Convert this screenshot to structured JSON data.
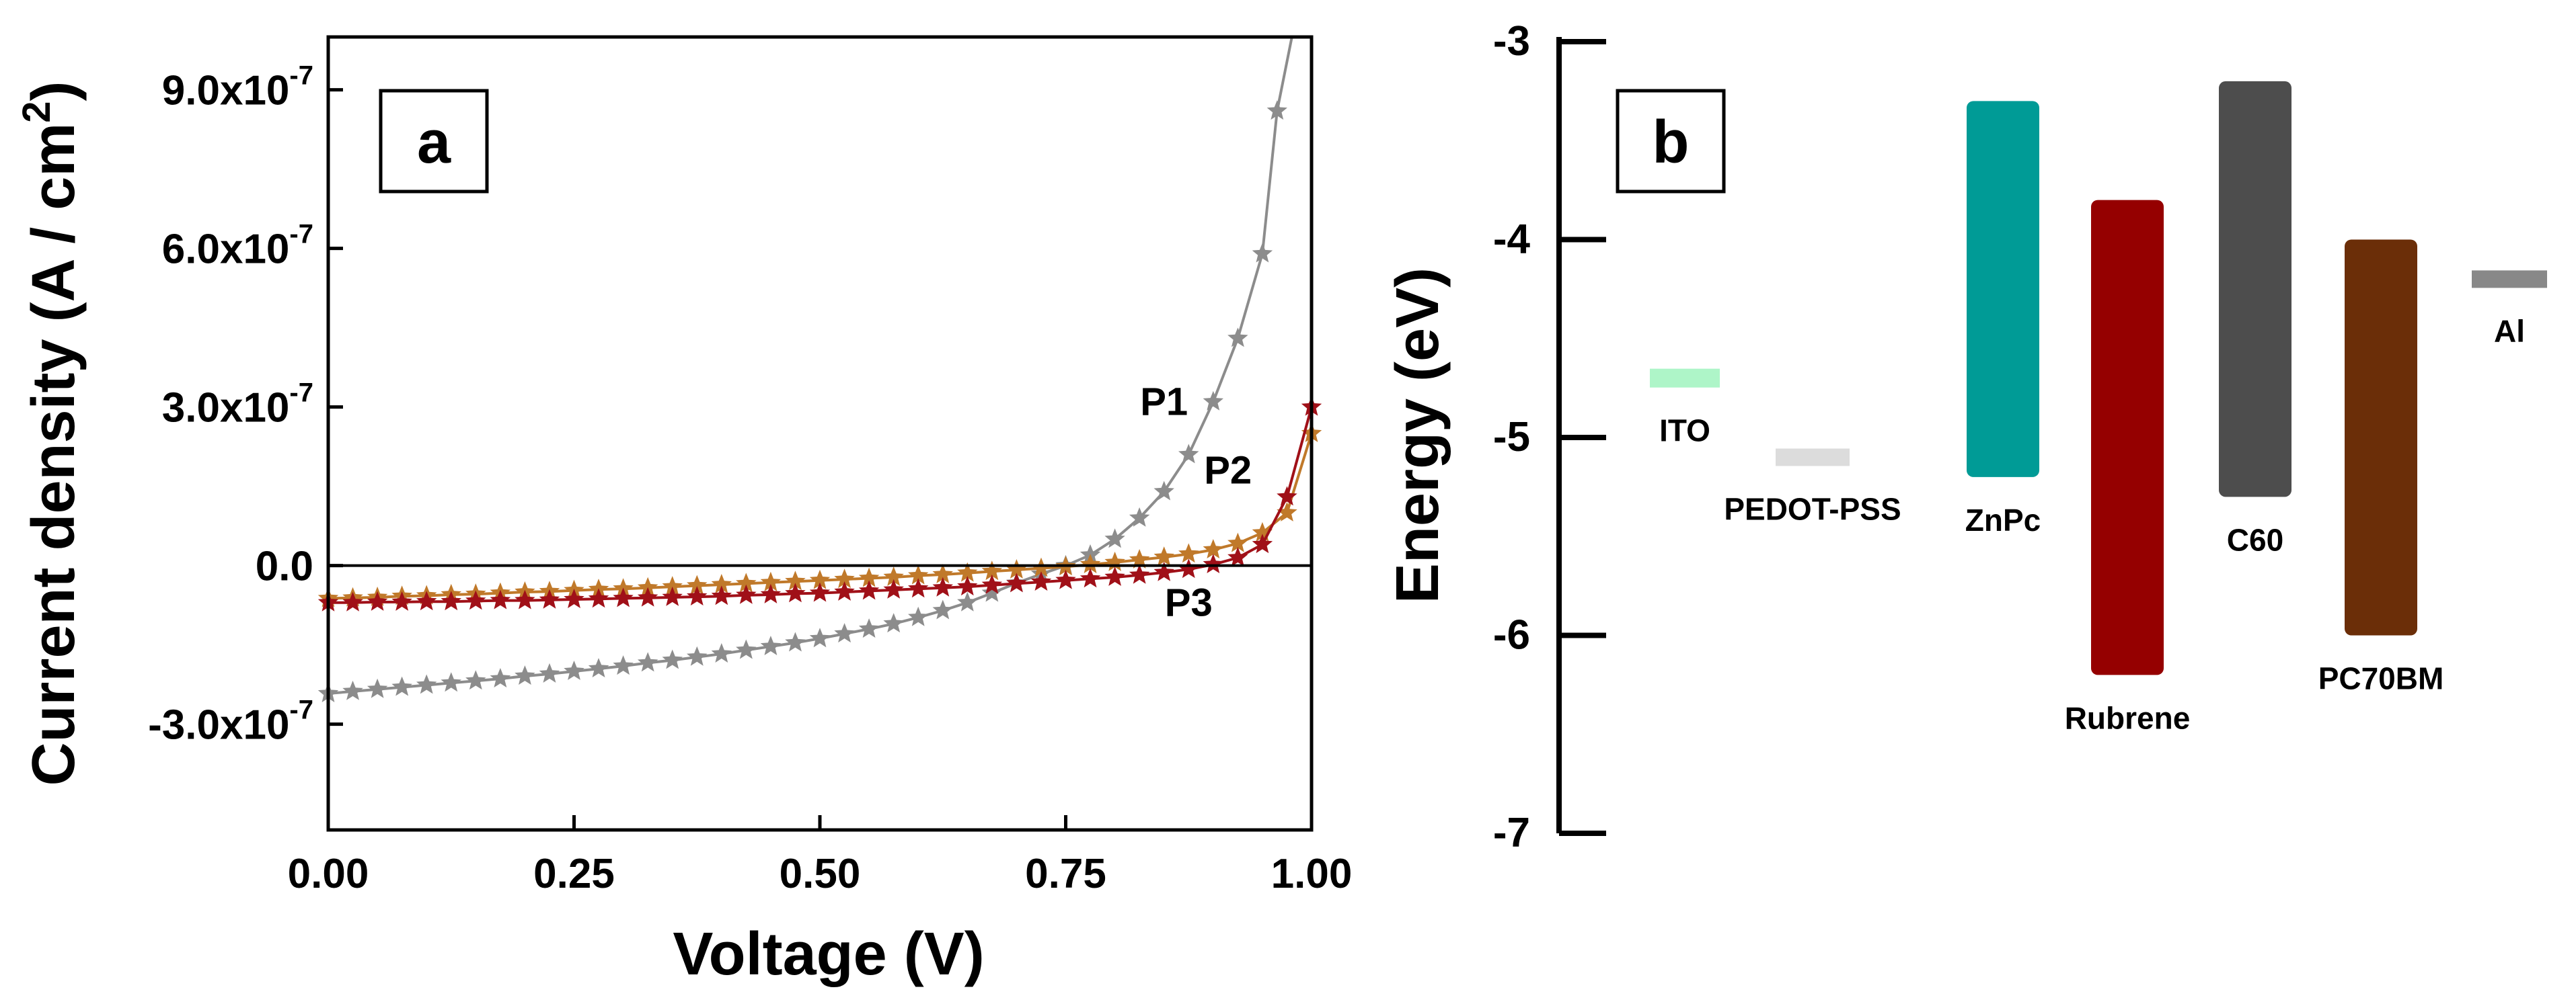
{
  "chart_data": [
    {
      "panel_label": "a",
      "type": "scatter",
      "xlabel": "Voltage  (V)",
      "ylabel_text": "Current  density  (A / cm",
      "ylabel_sup": "2",
      "ylabel_close": ")",
      "xlim": [
        0,
        1
      ],
      "ylim": [
        -5e-07,
        1e-06
      ],
      "x_ticks": [
        {
          "value": 0.0,
          "label": "0.00"
        },
        {
          "value": 0.25,
          "label": "0.25"
        },
        {
          "value": 0.5,
          "label": "0.50"
        },
        {
          "value": 0.75,
          "label": "0.75"
        },
        {
          "value": 1.0,
          "label": "1.00"
        }
      ],
      "y_ticks": [
        {
          "value": -3e-07,
          "mant": "-3.0x10",
          "exp": "-7"
        },
        {
          "value": 0,
          "mant": "0.0",
          "exp": ""
        },
        {
          "value": 3e-07,
          "mant": "3.0x10",
          "exp": "-7"
        },
        {
          "value": 6e-07,
          "mant": "6.0x10",
          "exp": "-7"
        },
        {
          "value": 9e-07,
          "mant": "9.0x10",
          "exp": "-7"
        }
      ],
      "zero_line": 0,
      "marker": "star",
      "series": [
        {
          "name": "P1",
          "color": "#8c8c8c",
          "label_at": [
            0.85,
            2.85e-07
          ],
          "x": [
            0.0,
            0.025,
            0.05,
            0.075,
            0.1,
            0.125,
            0.15,
            0.175,
            0.2,
            0.225,
            0.25,
            0.275,
            0.3,
            0.325,
            0.35,
            0.375,
            0.4,
            0.425,
            0.45,
            0.475,
            0.5,
            0.525,
            0.55,
            0.575,
            0.6,
            0.625,
            0.65,
            0.675,
            0.7,
            0.725,
            0.75,
            0.775,
            0.8,
            0.825,
            0.85,
            0.875,
            0.9,
            0.925,
            0.95,
            0.965
          ],
          "y": [
            -2.42e-07,
            -2.38e-07,
            -2.34e-07,
            -2.3e-07,
            -2.26e-07,
            -2.22e-07,
            -2.18e-07,
            -2.14e-07,
            -2.09e-07,
            -2.05e-07,
            -2e-07,
            -1.95e-07,
            -1.9e-07,
            -1.84e-07,
            -1.79e-07,
            -1.73e-07,
            -1.67e-07,
            -1.6e-07,
            -1.53e-07,
            -1.46e-07,
            -1.38e-07,
            -1.29e-07,
            -1.2e-07,
            -1.1e-07,
            -9.8e-08,
            -8.5e-08,
            -7e-08,
            -5.2e-08,
            -3.3e-08,
            -1.6e-08,
            0.0,
            2e-08,
            5e-08,
            9e-08,
            1.4e-07,
            2.1e-07,
            3.1e-07,
            4.3e-07,
            5.9e-07,
            8.6e-07
          ],
          "tail": [
            [
              0.965,
              8.6e-07
            ],
            [
              0.98,
              1e-06
            ]
          ]
        },
        {
          "name": "P2",
          "color": "#c0792a",
          "label_at": [
            0.915,
            1.55e-07
          ],
          "x": [
            0.0,
            0.025,
            0.05,
            0.075,
            0.1,
            0.125,
            0.15,
            0.175,
            0.2,
            0.225,
            0.25,
            0.275,
            0.3,
            0.325,
            0.35,
            0.375,
            0.4,
            0.425,
            0.45,
            0.475,
            0.5,
            0.525,
            0.55,
            0.575,
            0.6,
            0.625,
            0.65,
            0.675,
            0.7,
            0.725,
            0.75,
            0.775,
            0.8,
            0.825,
            0.85,
            0.875,
            0.9,
            0.925,
            0.95,
            0.975,
            1.0
          ],
          "y": [
            -6.2e-08,
            -6.1e-08,
            -6e-08,
            -5.8e-08,
            -5.7e-08,
            -5.5e-08,
            -5.4e-08,
            -5.2e-08,
            -5e-08,
            -4.9e-08,
            -4.7e-08,
            -4.5e-08,
            -4.4e-08,
            -4.2e-08,
            -4e-08,
            -3.8e-08,
            -3.6e-08,
            -3.4e-08,
            -3.2e-08,
            -3e-08,
            -2.8e-08,
            -2.6e-08,
            -2.4e-08,
            -2.2e-08,
            -1.9e-08,
            -1.7e-08,
            -1.4e-08,
            -1.1e-08,
            -8e-09,
            -5e-09,
            -2e-09,
            2e-09,
            6e-09,
            1.1e-08,
            1.6e-08,
            2.2e-08,
            3e-08,
            4.2e-08,
            6.2e-08,
            1e-07,
            2.5e-07
          ]
        },
        {
          "name": "P3",
          "color": "#a01018",
          "label_at": [
            0.875,
            -9.5e-08
          ],
          "x": [
            0.0,
            0.025,
            0.05,
            0.075,
            0.1,
            0.125,
            0.15,
            0.175,
            0.2,
            0.225,
            0.25,
            0.275,
            0.3,
            0.325,
            0.35,
            0.375,
            0.4,
            0.425,
            0.45,
            0.475,
            0.5,
            0.525,
            0.55,
            0.575,
            0.6,
            0.625,
            0.65,
            0.675,
            0.7,
            0.725,
            0.75,
            0.775,
            0.8,
            0.825,
            0.85,
            0.875,
            0.9,
            0.925,
            0.95,
            0.975,
            1.0
          ],
          "y": [
            -7e-08,
            -7e-08,
            -6.9e-08,
            -6.9e-08,
            -6.8e-08,
            -6.8e-08,
            -6.7e-08,
            -6.6e-08,
            -6.6e-08,
            -6.5e-08,
            -6.4e-08,
            -6.3e-08,
            -6.2e-08,
            -6.1e-08,
            -6e-08,
            -5.9e-08,
            -5.8e-08,
            -5.6e-08,
            -5.5e-08,
            -5.3e-08,
            -5.2e-08,
            -5e-08,
            -4.8e-08,
            -4.6e-08,
            -4.4e-08,
            -4.2e-08,
            -4e-08,
            -3.7e-08,
            -3.4e-08,
            -3.1e-08,
            -2.8e-08,
            -2.5e-08,
            -2.2e-08,
            -1.8e-08,
            -1.3e-08,
            -7e-09,
            2e-09,
            1.5e-08,
            4e-08,
            1.3e-07,
            3e-07
          ]
        }
      ]
    },
    {
      "panel_label": "b",
      "type": "bar",
      "ylabel": "Energy  (eV)",
      "ylim": [
        -7,
        -3
      ],
      "y_ticks": [
        {
          "value": -3,
          "label": "-3"
        },
        {
          "value": -4,
          "label": "-4"
        },
        {
          "value": -5,
          "label": "-5"
        },
        {
          "value": -6,
          "label": "-6"
        },
        {
          "value": -7,
          "label": "-7"
        }
      ],
      "levels": [
        {
          "name": "ITO",
          "kind": "line",
          "value": -4.7,
          "color": "#aef5c8",
          "label_pos": "below"
        },
        {
          "name": "PEDOT-PSS",
          "kind": "line",
          "value": -5.1,
          "color": "#dcdcdc",
          "label_pos": "below"
        },
        {
          "name": "ZnPc",
          "kind": "bar",
          "top": -3.3,
          "bottom": -5.2,
          "color": "#009b96",
          "label_pos": "below"
        },
        {
          "name": "Rubrene",
          "kind": "bar",
          "top": -3.8,
          "bottom": -6.2,
          "color": "#950000",
          "label_pos": "below"
        },
        {
          "name": "C60",
          "kind": "bar",
          "top": -3.2,
          "bottom": -5.3,
          "color": "#4d4d4d",
          "label_pos": "below"
        },
        {
          "name": "PC70BM",
          "kind": "bar",
          "top": -4.0,
          "bottom": -6.0,
          "color": "#6b2e08",
          "label_pos": "below"
        },
        {
          "name": "Al",
          "kind": "line",
          "value": -4.2,
          "color": "#888888",
          "label_pos": "below"
        }
      ]
    }
  ]
}
